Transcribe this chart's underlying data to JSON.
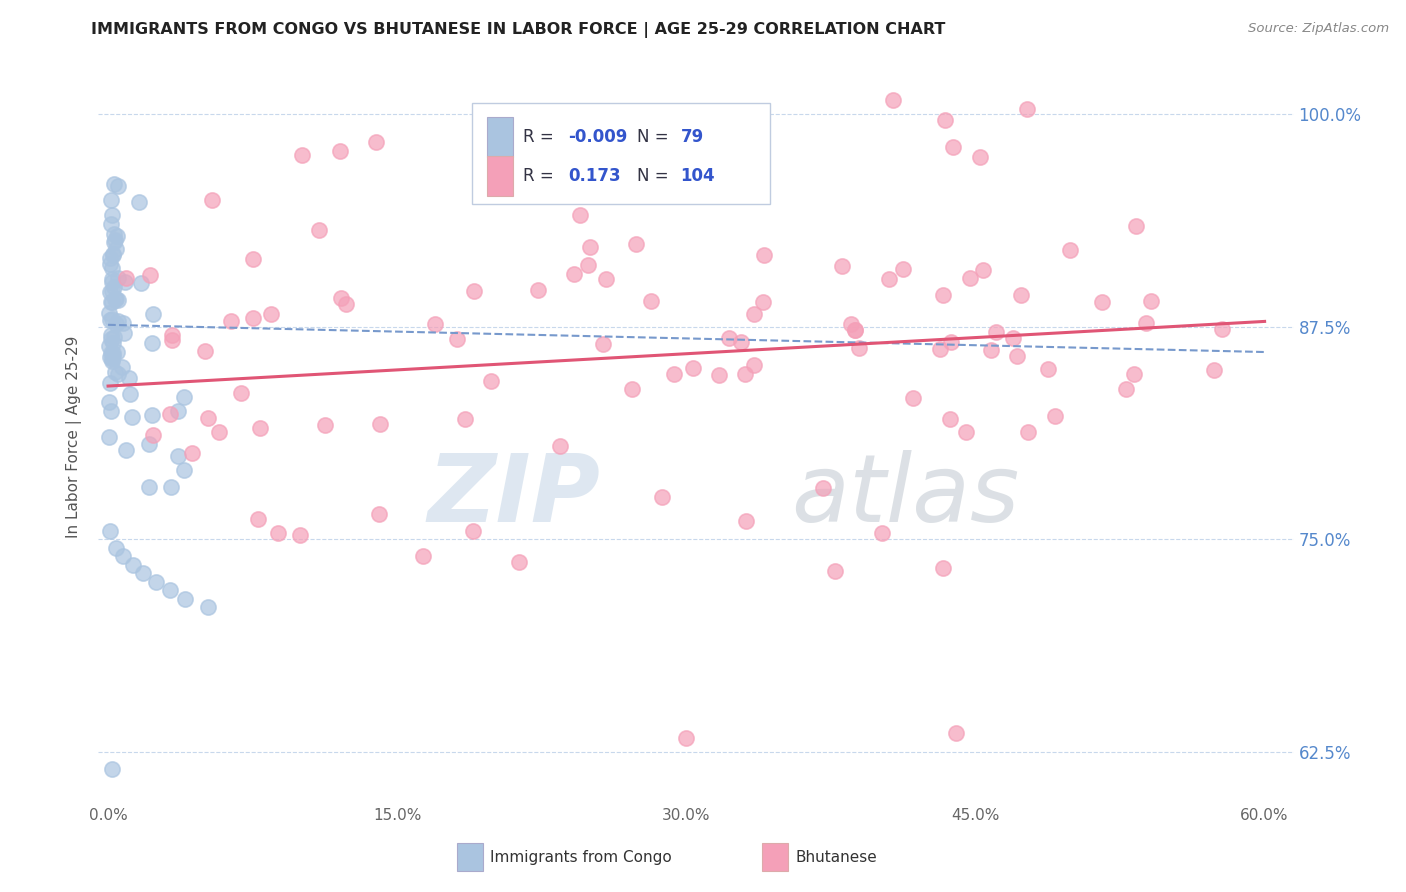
{
  "title": "IMMIGRANTS FROM CONGO VS BHUTANESE IN LABOR FORCE | AGE 25-29 CORRELATION CHART",
  "source": "Source: ZipAtlas.com",
  "ylabel": "In Labor Force | Age 25-29",
  "xlim": [
    -0.005,
    0.615
  ],
  "ylim": [
    0.595,
    1.025
  ],
  "yticks": [
    0.625,
    0.75,
    0.875,
    1.0
  ],
  "ytick_labels": [
    "62.5%",
    "75.0%",
    "87.5%",
    "100.0%"
  ],
  "xticks": [
    0.0,
    0.15,
    0.3,
    0.45,
    0.6
  ],
  "xtick_labels": [
    "0.0%",
    "15.0%",
    "30.0%",
    "45.0%",
    "60.0%"
  ],
  "congo_R": -0.009,
  "congo_N": 79,
  "bhutan_R": 0.173,
  "bhutan_N": 104,
  "congo_color": "#aac4e0",
  "bhutan_color": "#f4a0b8",
  "trend_congo_color": "#7799cc",
  "trend_bhutan_color": "#e05575",
  "background_color": "#ffffff",
  "grid_color": "#c8d8ec",
  "legend_box_color": "#f0f4fa",
  "legend_border_color": "#c0cce0",
  "right_axis_color": "#5588cc",
  "title_color": "#222222",
  "source_color": "#888888",
  "axis_label_color": "#555555",
  "xtick_color": "#666666",
  "watermark_zip_color": "#c8d8e8",
  "watermark_atlas_color": "#c0c8d0"
}
